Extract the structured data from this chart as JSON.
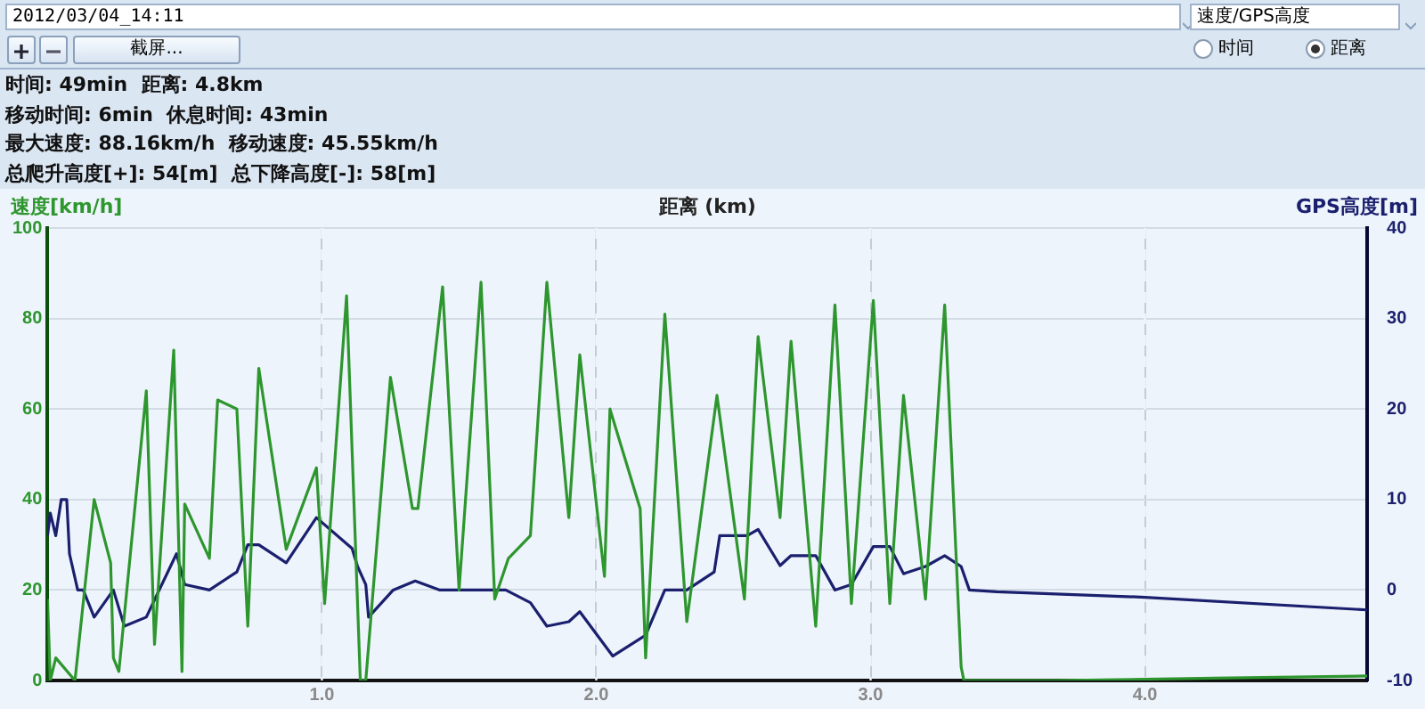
{
  "chart_data": {
    "type": "line",
    "xlabel": "距离 (km)",
    "ylabel": "速度[km/h]",
    "y2label": "GPS高度[m]",
    "annotations": [
      "2012/03/04_14:11",
      "速度/GPS高度",
      "时间",
      "距离",
      "截屏...",
      "时间: 49min  距离: 4.8km",
      "移动时间: 6min  休息时间: 43min",
      "最大速度: 88.16km/h  移动速度: 45.55km/h",
      "总爬升高度[+]: 54[m]  总下降高度[-]: 58[m]"
    ],
    "xlim": [
      0,
      4.81
    ],
    "xticks": [
      {
        "value": 1,
        "label": "1.0"
      },
      {
        "value": 2,
        "label": "2.0"
      },
      {
        "value": 3,
        "label": "3.0"
      },
      {
        "value": 4,
        "label": "4.0"
      }
    ],
    "ylim": [
      0,
      100
    ],
    "yticks": [
      0,
      20,
      40,
      60,
      80,
      100
    ],
    "y2lim": [
      -10,
      40
    ],
    "y2ticks": [
      -10,
      0,
      10,
      20,
      30,
      40
    ],
    "grid": true,
    "legend": false,
    "marker": "none",
    "line_style": "solid",
    "series": [
      {
        "color": "#2e962e",
        "x": [
          0,
          0.01,
          0.03,
          0.1,
          0.17,
          0.23,
          0.24,
          0.26,
          0.36,
          0.39,
          0.46,
          0.49,
          0.5,
          0.59,
          0.62,
          0.69,
          0.73,
          0.77,
          0.87,
          0.98,
          1.01,
          1.09,
          1.14,
          1.16,
          1.25,
          1.33,
          1.35,
          1.44,
          1.5,
          1.58,
          1.63,
          1.68,
          1.76,
          1.82,
          1.9,
          1.94,
          2.03,
          2.05,
          2.16,
          2.18,
          2.25,
          2.33,
          2.44,
          2.54,
          2.59,
          2.67,
          2.71,
          2.8,
          2.87,
          2.93,
          3.01,
          3.07,
          3.12,
          3.2,
          3.27,
          3.33,
          3.34,
          3.67,
          4.25,
          4.81
        ],
        "values": [
          18,
          0,
          5,
          0,
          40,
          26,
          5,
          2,
          64,
          8,
          73,
          2,
          39,
          27,
          62,
          60,
          12,
          69,
          29,
          47,
          17,
          85,
          0,
          0,
          67,
          38,
          38,
          87,
          20,
          88,
          18,
          27,
          32,
          88,
          36,
          72,
          23,
          60,
          38,
          5,
          81,
          13,
          63,
          18,
          76,
          36,
          75,
          12,
          83,
          17,
          84,
          17,
          63,
          18,
          83,
          3,
          0,
          0,
          0.5,
          1
        ]
      },
      {
        "color": "#1a1f6e",
        "axis": "y2",
        "x": [
          0,
          0.01,
          0.03,
          0.05,
          0.07,
          0.08,
          0.11,
          0.13,
          0.17,
          0.24,
          0.28,
          0.36,
          0.47,
          0.5,
          0.59,
          0.69,
          0.73,
          0.77,
          0.87,
          0.98,
          1.11,
          1.13,
          1.16,
          1.17,
          1.26,
          1.34,
          1.43,
          1.67,
          1.76,
          1.82,
          1.9,
          1.94,
          2.06,
          2.18,
          2.25,
          2.33,
          2.43,
          2.45,
          2.55,
          2.59,
          2.67,
          2.71,
          2.8,
          2.87,
          2.93,
          3.01,
          3.07,
          3.12,
          3.2,
          3.27,
          3.33,
          3.36,
          3.46,
          4.0,
          4.81
        ],
        "values": [
          6,
          8.5,
          6,
          10,
          10,
          4,
          0,
          0,
          -3,
          0,
          -4,
          -3,
          4,
          0.6,
          0,
          2,
          5,
          5,
          3,
          8,
          4.6,
          2.6,
          0.6,
          -3,
          0,
          1,
          0,
          0,
          -1.4,
          -4,
          -3.5,
          -2.4,
          -7.3,
          -5,
          0,
          0,
          2,
          6,
          6,
          6.7,
          2.7,
          3.8,
          3.8,
          0,
          0.6,
          4.8,
          4.8,
          1.8,
          2.6,
          3.8,
          2.6,
          0,
          -0.2,
          -0.8,
          -2.2
        ]
      }
    ]
  }
}
